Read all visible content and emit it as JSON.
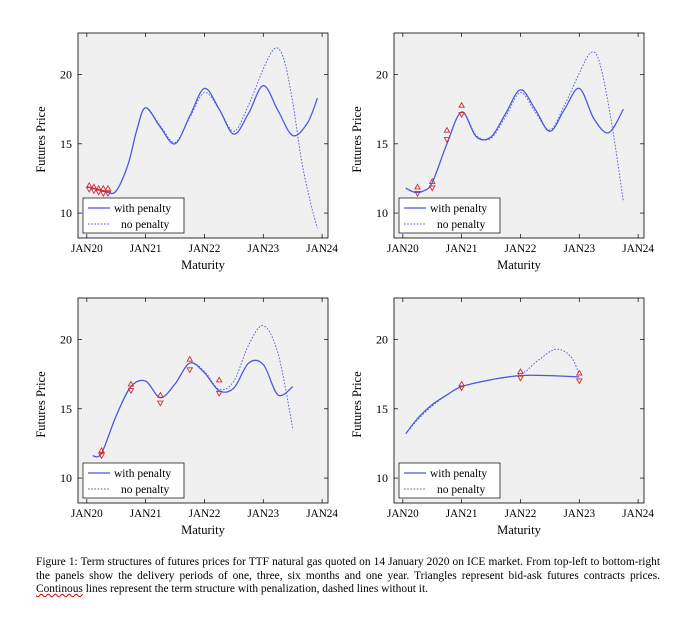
{
  "figure": {
    "caption": {
      "before": "Figure 1: Term structures of futures prices for TTF natural gas quoted on 14 January 2020 on ICE market. From top-left to bottom-right the panels show the delivery periods of one, three, six months and one year. Triangles represent bid-ask futures contracts prices. ",
      "misspelled": "Continous",
      "after": " lines represent the term structure with penalization, dashed lines without it."
    }
  },
  "colors": {
    "line": "#4a57e0",
    "marker": "#d42a2a",
    "plot_background": "#f0f0f0"
  },
  "chart_data": [
    {
      "type": "line",
      "panel": "top-left",
      "xlabel": "Maturity",
      "ylabel": "Futures Price",
      "xticks": [
        "JAN20",
        "JAN21",
        "JAN22",
        "JAN23",
        "JAN24"
      ],
      "yticks": [
        10,
        15,
        20
      ],
      "xlim": [
        2019.85,
        2024.1
      ],
      "ylim": [
        8.2,
        23.0
      ],
      "legend": {
        "position": "bottom-left",
        "entries": [
          "with penalty",
          "no penalty"
        ]
      },
      "series": [
        {
          "name": "with penalty",
          "style": "solid",
          "x": [
            2020.0,
            2020.2,
            2020.35,
            2020.5,
            2020.7,
            2020.85,
            2021.0,
            2021.25,
            2021.5,
            2021.75,
            2022.0,
            2022.25,
            2022.5,
            2022.75,
            2023.0,
            2023.25,
            2023.5,
            2023.75,
            2023.92
          ],
          "y": [
            11.9,
            11.7,
            11.5,
            11.6,
            13.5,
            16.0,
            17.6,
            16.2,
            15.0,
            17.0,
            19.0,
            17.5,
            15.7,
            17.2,
            19.2,
            17.4,
            15.6,
            16.5,
            18.3
          ]
        },
        {
          "name": "no penalty",
          "style": "dashed",
          "x": [
            2020.0,
            2020.2,
            2020.35,
            2020.5,
            2020.7,
            2020.85,
            2021.0,
            2021.25,
            2021.5,
            2021.75,
            2022.0,
            2022.25,
            2022.5,
            2022.75,
            2023.0,
            2023.2,
            2023.35,
            2023.5,
            2023.65,
            2023.8,
            2023.92
          ],
          "y": [
            11.9,
            11.7,
            11.5,
            11.6,
            13.5,
            16.0,
            17.6,
            16.3,
            15.1,
            16.9,
            18.7,
            17.5,
            15.9,
            17.8,
            20.4,
            21.9,
            21.1,
            18.0,
            13.8,
            10.8,
            8.9
          ]
        }
      ],
      "quotes": {
        "x": [
          2020.04,
          2020.12,
          2020.2,
          2020.28,
          2020.36
        ],
        "bid": [
          11.7,
          11.6,
          11.5,
          11.4,
          11.4
        ],
        "ask": [
          12.0,
          11.9,
          11.8,
          11.8,
          11.8
        ]
      }
    },
    {
      "type": "line",
      "panel": "top-right",
      "xlabel": "Maturity",
      "ylabel": "Futures Price",
      "xticks": [
        "JAN20",
        "JAN21",
        "JAN22",
        "JAN23",
        "JAN24"
      ],
      "yticks": [
        10,
        15,
        20
      ],
      "xlim": [
        2019.85,
        2024.1
      ],
      "ylim": [
        8.2,
        23.0
      ],
      "legend": {
        "position": "bottom-left",
        "entries": [
          "with penalty",
          "no penalty"
        ]
      },
      "series": [
        {
          "name": "with penalty",
          "style": "solid",
          "x": [
            2020.05,
            2020.2,
            2020.35,
            2020.5,
            2020.75,
            2021.0,
            2021.25,
            2021.5,
            2021.75,
            2022.0,
            2022.25,
            2022.5,
            2022.75,
            2023.0,
            2023.25,
            2023.5,
            2023.75
          ],
          "y": [
            11.8,
            11.5,
            11.6,
            12.2,
            15.0,
            17.3,
            15.5,
            15.5,
            17.2,
            18.9,
            17.5,
            15.9,
            17.5,
            19.0,
            16.8,
            15.8,
            17.5
          ]
        },
        {
          "name": "no penalty",
          "style": "dashed",
          "x": [
            2020.05,
            2020.2,
            2020.35,
            2020.5,
            2020.75,
            2021.0,
            2021.25,
            2021.5,
            2021.75,
            2022.0,
            2022.25,
            2022.5,
            2022.75,
            2023.0,
            2023.2,
            2023.35,
            2023.55,
            2023.75
          ],
          "y": [
            11.8,
            11.5,
            11.6,
            12.2,
            15.0,
            17.3,
            15.6,
            15.4,
            17.0,
            18.7,
            17.3,
            16.0,
            17.8,
            20.1,
            21.6,
            20.8,
            16.5,
            10.8
          ]
        }
      ],
      "quotes": {
        "x": [
          2020.25,
          2020.5,
          2020.75,
          2021.0
        ],
        "bid": [
          11.4,
          11.8,
          15.3,
          17.1
        ],
        "ask": [
          11.9,
          12.3,
          16.0,
          17.8
        ]
      }
    },
    {
      "type": "line",
      "panel": "bottom-left",
      "xlabel": "Maturity",
      "ylabel": "Futures Price",
      "xticks": [
        "JAN20",
        "JAN21",
        "JAN22",
        "JAN23",
        "JAN24"
      ],
      "yticks": [
        10,
        15,
        20
      ],
      "xlim": [
        2019.85,
        2024.1
      ],
      "ylim": [
        8.2,
        23.0
      ],
      "legend": {
        "position": "bottom-left",
        "entries": [
          "with penalty",
          "no penalty"
        ]
      },
      "series": [
        {
          "name": "with penalty",
          "style": "solid",
          "x": [
            2020.1,
            2020.25,
            2020.5,
            2020.75,
            2021.0,
            2021.25,
            2021.5,
            2021.75,
            2022.0,
            2022.25,
            2022.5,
            2022.75,
            2023.0,
            2023.25,
            2023.5
          ],
          "y": [
            11.6,
            11.8,
            14.5,
            16.6,
            17.0,
            15.8,
            16.8,
            18.3,
            17.6,
            16.3,
            16.5,
            18.3,
            18.2,
            16.0,
            16.6
          ]
        },
        {
          "name": "no penalty",
          "style": "dashed",
          "x": [
            2020.1,
            2020.25,
            2020.5,
            2020.75,
            2021.0,
            2021.25,
            2021.5,
            2021.75,
            2022.0,
            2022.25,
            2022.5,
            2022.75,
            2023.0,
            2023.25,
            2023.5
          ],
          "y": [
            11.6,
            11.8,
            14.5,
            16.6,
            17.0,
            15.8,
            16.8,
            18.3,
            17.7,
            16.4,
            17.0,
            19.6,
            21.0,
            19.0,
            13.6
          ]
        }
      ],
      "quotes": {
        "x": [
          2020.25,
          2020.75,
          2021.25,
          2021.75,
          2022.25
        ],
        "bid": [
          11.6,
          16.3,
          15.4,
          17.8,
          16.1
        ],
        "ask": [
          12.0,
          16.8,
          16.0,
          18.6,
          17.1
        ]
      }
    },
    {
      "type": "line",
      "panel": "bottom-right",
      "xlabel": "Maturity",
      "ylabel": "Futures Price",
      "xticks": [
        "JAN20",
        "JAN21",
        "JAN22",
        "JAN23",
        "JAN24"
      ],
      "yticks": [
        10,
        15,
        20
      ],
      "xlim": [
        2019.85,
        2024.1
      ],
      "ylim": [
        8.2,
        23.0
      ],
      "legend": {
        "position": "bottom-left",
        "entries": [
          "with penalty",
          "no penalty"
        ]
      },
      "series": [
        {
          "name": "with penalty",
          "style": "solid",
          "x": [
            2020.05,
            2020.25,
            2020.5,
            2020.75,
            2021.0,
            2021.5,
            2022.0,
            2022.5,
            2023.0
          ],
          "y": [
            13.2,
            14.3,
            15.3,
            16.0,
            16.6,
            17.1,
            17.4,
            17.4,
            17.3
          ]
        },
        {
          "name": "no penalty",
          "style": "dashed",
          "x": [
            2020.05,
            2020.25,
            2020.5,
            2020.75,
            2021.0,
            2021.5,
            2022.0,
            2022.3,
            2022.6,
            2022.85,
            2023.0
          ],
          "y": [
            13.2,
            14.2,
            15.2,
            16.0,
            16.6,
            17.1,
            17.5,
            18.5,
            19.3,
            18.8,
            17.5
          ]
        }
      ],
      "quotes": {
        "x": [
          2021.0,
          2022.0,
          2023.0
        ],
        "bid": [
          16.5,
          17.2,
          17.0
        ],
        "ask": [
          16.8,
          17.7,
          17.6
        ]
      }
    }
  ]
}
